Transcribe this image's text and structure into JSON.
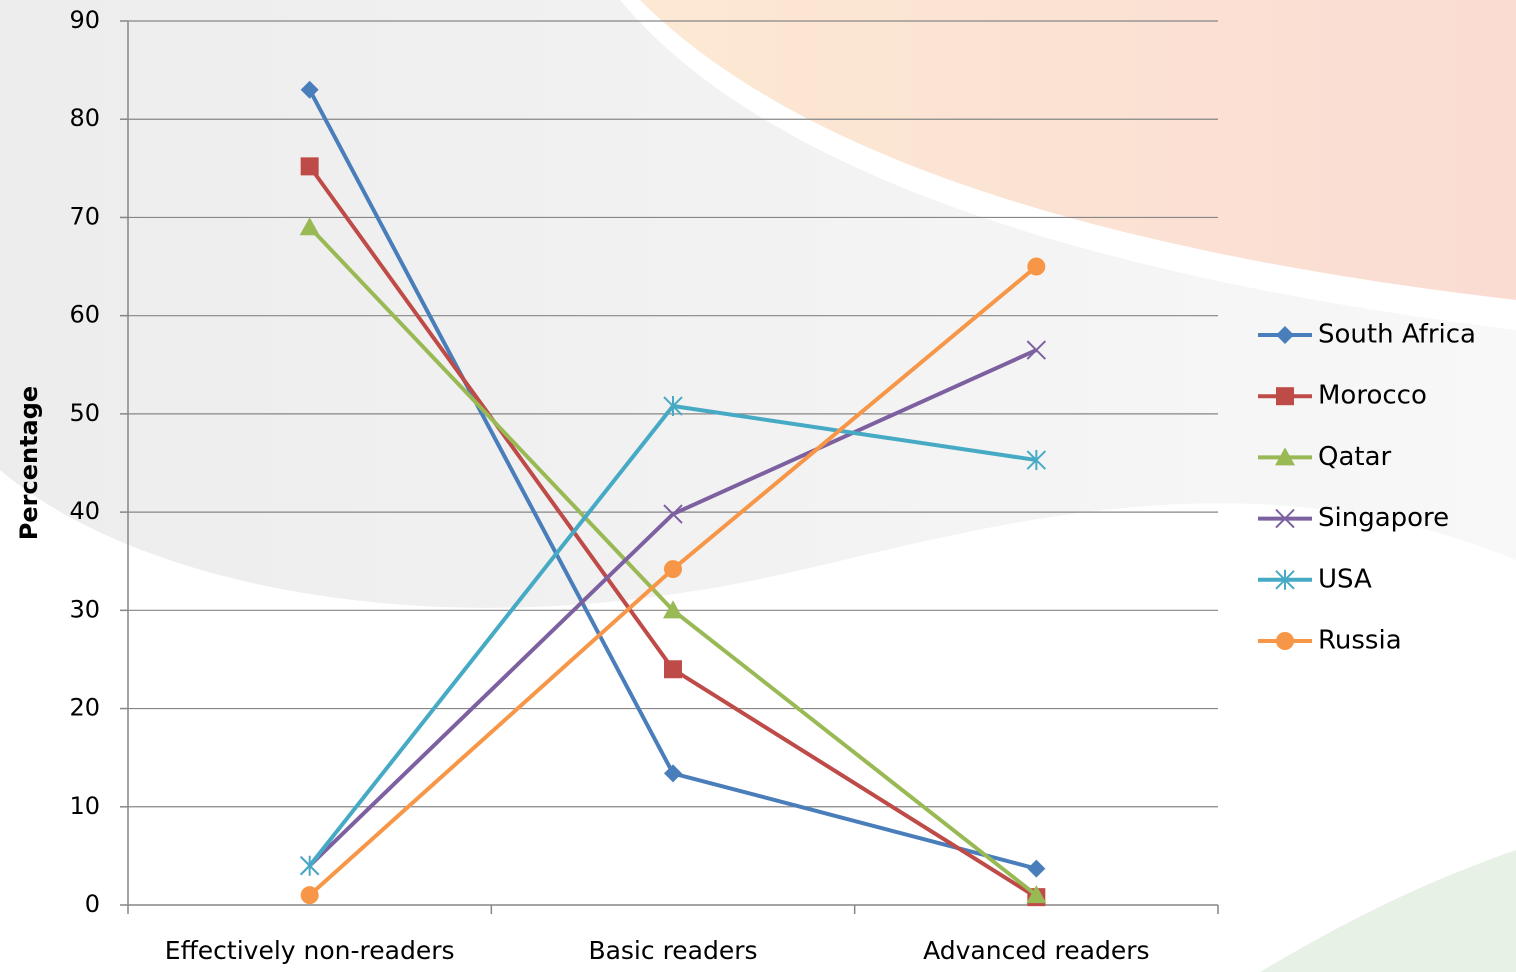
{
  "chart_data": {
    "type": "line",
    "y_label": "Percentage",
    "categories": [
      "Effectively non-readers",
      "Basic readers",
      "Advanced readers"
    ],
    "series": [
      {
        "name": "South Africa",
        "color": "#4a7ebb",
        "marker": "diamond",
        "values": [
          83,
          13.4,
          3.7
        ]
      },
      {
        "name": "Morocco",
        "color": "#be4b48",
        "marker": "square",
        "values": [
          75.2,
          24,
          0.8
        ]
      },
      {
        "name": "Qatar",
        "color": "#98b954",
        "marker": "triangle",
        "values": [
          69,
          30,
          1
        ]
      },
      {
        "name": "Singapore",
        "color": "#7d60a0",
        "marker": "x",
        "values": [
          4,
          39.8,
          56.5
        ]
      },
      {
        "name": "USA",
        "color": "#46aac5",
        "marker": "star",
        "values": [
          4,
          50.8,
          45.3
        ]
      },
      {
        "name": "Russia",
        "color": "#f79646",
        "marker": "circle",
        "values": [
          1,
          34.2,
          65
        ]
      }
    ],
    "ylim": [
      0,
      90
    ],
    "yticks": [
      0,
      10,
      20,
      30,
      40,
      50,
      60,
      70,
      80,
      90
    ],
    "grid": true,
    "legend": "right"
  }
}
